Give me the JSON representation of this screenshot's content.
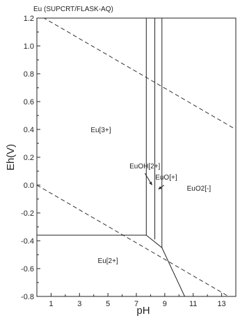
{
  "chart_data": {
    "type": "eh-ph-diagram",
    "title": "Eu (SUPCRT/FLASK-AQ)",
    "xlabel": "pH",
    "ylabel": "Eh(V)",
    "xlim": [
      0,
      14
    ],
    "ylim": [
      -0.8,
      1.2
    ],
    "xticks": [
      1,
      3,
      5,
      7,
      9,
      11,
      13
    ],
    "yticks": [
      1.2,
      1.0,
      0.8,
      0.6,
      0.4,
      0.2,
      0.0,
      -0.2,
      -0.4,
      -0.6,
      -0.8
    ],
    "ytick_labels": [
      "1.2",
      "1.0",
      "0.8",
      "0.6",
      "0.4",
      "0.2",
      "0.0",
      "-0.2",
      "-0.4",
      "-0.6",
      "-0.8"
    ],
    "grid": false,
    "water_stability_lines": [
      {
        "name": "O2/H2O",
        "points": [
          [
            0,
            1.23
          ],
          [
            14,
            0.4
          ]
        ]
      },
      {
        "name": "H2O/H2",
        "points": [
          [
            0,
            0.0
          ],
          [
            14,
            -0.83
          ]
        ]
      }
    ],
    "boundaries": [
      {
        "points": [
          [
            0,
            -0.36
          ],
          [
            7.7,
            -0.36
          ],
          [
            8.8,
            -0.45
          ],
          [
            10.4,
            -0.8
          ]
        ]
      },
      {
        "points": [
          [
            7.7,
            1.2
          ],
          [
            7.7,
            -0.36
          ]
        ]
      },
      {
        "points": [
          [
            8.3,
            1.2
          ],
          [
            8.3,
            -0.39
          ]
        ]
      },
      {
        "points": [
          [
            8.8,
            1.2
          ],
          [
            8.8,
            -0.45
          ]
        ]
      }
    ],
    "regions": [
      {
        "label": "Eu[3+]",
        "x": 4.5,
        "y": 0.38
      },
      {
        "label": "EuOH[2+]",
        "x": 7.6,
        "y": 0.12
      },
      {
        "label": "EuO[+]",
        "x": 9.1,
        "y": 0.04
      },
      {
        "label": "EuO2[-]",
        "x": 11.4,
        "y": -0.04
      },
      {
        "label": "Eu[2+]",
        "x": 5.0,
        "y": -0.56
      }
    ],
    "arrows": [
      {
        "from": [
          7.6,
          0.085
        ],
        "to": [
          8.1,
          0.0
        ]
      },
      {
        "from": [
          8.95,
          0.0
        ],
        "to": [
          8.55,
          -0.03
        ]
      }
    ]
  }
}
